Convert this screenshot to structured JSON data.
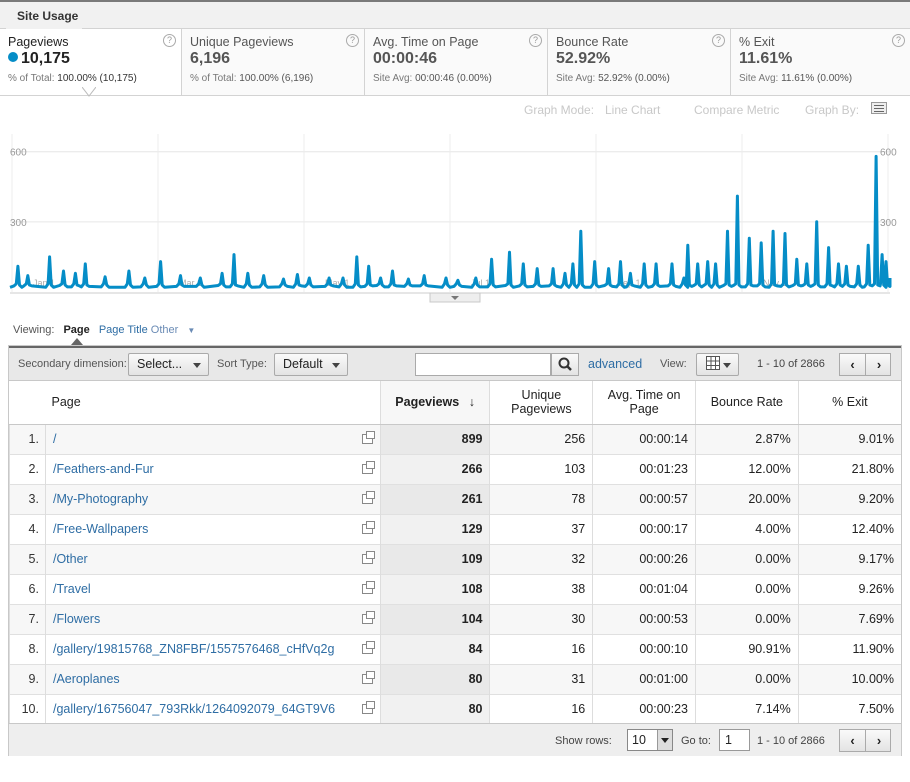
{
  "topbar": {
    "tab_label": "Site Usage"
  },
  "metrics": [
    {
      "label": "Pageviews",
      "value": "10,175",
      "sub_label": "% of Total:",
      "sub_value": "100.00% (10,175)",
      "selected": true
    },
    {
      "label": "Unique Pageviews",
      "value": "6,196",
      "sub_label": "% of Total:",
      "sub_value": "100.00% (6,196)"
    },
    {
      "label": "Avg. Time on Page",
      "value": "00:00:46",
      "sub_label": "Site Avg:",
      "sub_value": "00:00:46 (0.00%)"
    },
    {
      "label": "Bounce Rate",
      "value": "52.92%",
      "sub_label": "Site Avg:",
      "sub_value": "52.92% (0.00%)"
    },
    {
      "label": "% Exit",
      "value": "11.61%",
      "sub_label": "Site Avg:",
      "sub_value": "11.61% (0.00%)"
    }
  ],
  "help_glyph": "?",
  "graph_controls": {
    "mode_label": "Graph Mode:",
    "mode_value": "Line Chart",
    "compare": "Compare Metric",
    "graph_by": "Graph By:"
  },
  "chart_data": {
    "type": "line",
    "series": [
      {
        "name": "Pageviews",
        "color": "#058dc7"
      }
    ],
    "y_ticks": [
      600,
      300
    ],
    "x_labels": [
      "Jan 1",
      "Mar 1",
      "May 1",
      "Jul 1",
      "Sep 1",
      "Nov 1"
    ],
    "ylim": [
      0,
      650
    ],
    "peaks": [
      {
        "day": 4,
        "v": 110
      },
      {
        "day": 9,
        "v": 70
      },
      {
        "day": 20,
        "v": 150
      },
      {
        "day": 27,
        "v": 90
      },
      {
        "day": 33,
        "v": 80
      },
      {
        "day": 38,
        "v": 120
      },
      {
        "day": 48,
        "v": 65
      },
      {
        "day": 60,
        "v": 90
      },
      {
        "day": 68,
        "v": 60
      },
      {
        "day": 76,
        "v": 130
      },
      {
        "day": 86,
        "v": 70
      },
      {
        "day": 96,
        "v": 60
      },
      {
        "day": 107,
        "v": 80
      },
      {
        "day": 113,
        "v": 160
      },
      {
        "day": 120,
        "v": 80
      },
      {
        "day": 128,
        "v": 70
      },
      {
        "day": 138,
        "v": 55
      },
      {
        "day": 145,
        "v": 75
      },
      {
        "day": 151,
        "v": 60
      },
      {
        "day": 161,
        "v": 60
      },
      {
        "day": 168,
        "v": 60
      },
      {
        "day": 175,
        "v": 150
      },
      {
        "day": 181,
        "v": 110
      },
      {
        "day": 187,
        "v": 60
      },
      {
        "day": 193,
        "v": 90
      },
      {
        "day": 201,
        "v": 55
      },
      {
        "day": 209,
        "v": 70
      },
      {
        "day": 220,
        "v": 60
      },
      {
        "day": 226,
        "v": 50
      },
      {
        "day": 235,
        "v": 60
      },
      {
        "day": 243,
        "v": 140
      },
      {
        "day": 252,
        "v": 170
      },
      {
        "day": 259,
        "v": 120
      },
      {
        "day": 266,
        "v": 100
      },
      {
        "day": 274,
        "v": 100
      },
      {
        "day": 280,
        "v": 80
      },
      {
        "day": 284,
        "v": 120
      },
      {
        "day": 288,
        "v": 260
      },
      {
        "day": 295,
        "v": 130
      },
      {
        "day": 302,
        "v": 100
      },
      {
        "day": 308,
        "v": 130
      },
      {
        "day": 313,
        "v": 80
      },
      {
        "day": 320,
        "v": 120
      },
      {
        "day": 326,
        "v": 120
      },
      {
        "day": 334,
        "v": 120
      },
      {
        "day": 340,
        "v": 60
      },
      {
        "day": 342,
        "v": 200
      },
      {
        "day": 347,
        "v": 120
      },
      {
        "day": 352,
        "v": 130
      },
      {
        "day": 356,
        "v": 120
      },
      {
        "day": 362,
        "v": 260
      },
      {
        "day": 367,
        "v": 410
      },
      {
        "day": 373,
        "v": 230
      },
      {
        "day": 379,
        "v": 210
      },
      {
        "day": 385,
        "v": 260
      },
      {
        "day": 391,
        "v": 250
      },
      {
        "day": 397,
        "v": 140
      },
      {
        "day": 402,
        "v": 120
      },
      {
        "day": 407,
        "v": 300
      },
      {
        "day": 413,
        "v": 190
      },
      {
        "day": 418,
        "v": 120
      },
      {
        "day": 422,
        "v": 110
      },
      {
        "day": 428,
        "v": 110
      },
      {
        "day": 433,
        "v": 200
      },
      {
        "day": 437,
        "v": 580
      },
      {
        "day": 440,
        "v": 160
      },
      {
        "day": 442,
        "v": 130
      }
    ],
    "baseline": 20,
    "days": 444
  },
  "viewing": {
    "label": "Viewing:",
    "current": "Page",
    "alt": "Page Title",
    "other": "Other"
  },
  "toolbar": {
    "secondary_label": "Secondary dimension:",
    "secondary_value": "Select...",
    "sort_label": "Sort Type:",
    "sort_value": "Default",
    "search_value": "",
    "advanced": "advanced",
    "view_label": "View:",
    "page_info": "1 - 10 of 2866",
    "prev": "‹",
    "next": "›"
  },
  "table": {
    "columns": [
      "Page",
      "Pageviews",
      "Unique Pageviews",
      "Avg. Time on Page",
      "Bounce Rate",
      "% Exit"
    ],
    "sort_arrow": "↓",
    "rows": [
      {
        "n": "1.",
        "page": "/",
        "pv": "899",
        "upv": "256",
        "time": "00:00:14",
        "bounce": "2.87%",
        "exit": "9.01%"
      },
      {
        "n": "2.",
        "page": "/Feathers-and-Fur",
        "pv": "266",
        "upv": "103",
        "time": "00:01:23",
        "bounce": "12.00%",
        "exit": "21.80%"
      },
      {
        "n": "3.",
        "page": "/My-Photography",
        "pv": "261",
        "upv": "78",
        "time": "00:00:57",
        "bounce": "20.00%",
        "exit": "9.20%"
      },
      {
        "n": "4.",
        "page": "/Free-Wallpapers",
        "pv": "129",
        "upv": "37",
        "time": "00:00:17",
        "bounce": "4.00%",
        "exit": "12.40%"
      },
      {
        "n": "5.",
        "page": "/Other",
        "pv": "109",
        "upv": "32",
        "time": "00:00:26",
        "bounce": "0.00%",
        "exit": "9.17%"
      },
      {
        "n": "6.",
        "page": "/Travel",
        "pv": "108",
        "upv": "38",
        "time": "00:01:04",
        "bounce": "0.00%",
        "exit": "9.26%"
      },
      {
        "n": "7.",
        "page": "/Flowers",
        "pv": "104",
        "upv": "30",
        "time": "00:00:53",
        "bounce": "0.00%",
        "exit": "7.69%"
      },
      {
        "n": "8.",
        "page": "/gallery/19815768_ZN8FBF/1557576468_cHfVq2g",
        "pv": "84",
        "upv": "16",
        "time": "00:00:10",
        "bounce": "90.91%",
        "exit": "11.90%"
      },
      {
        "n": "9.",
        "page": "/Aeroplanes",
        "pv": "80",
        "upv": "31",
        "time": "00:01:00",
        "bounce": "0.00%",
        "exit": "10.00%"
      },
      {
        "n": "10.",
        "page": "/gallery/16756047_793Rkk/1264092079_64GT9V6",
        "pv": "80",
        "upv": "16",
        "time": "00:00:23",
        "bounce": "7.14%",
        "exit": "7.50%"
      }
    ]
  },
  "footer": {
    "show_rows_label": "Show rows:",
    "show_rows_value": "10",
    "goto_label": "Go to:",
    "goto_value": "1",
    "page_info": "1 - 10 of 2866",
    "prev": "‹",
    "next": "›"
  }
}
